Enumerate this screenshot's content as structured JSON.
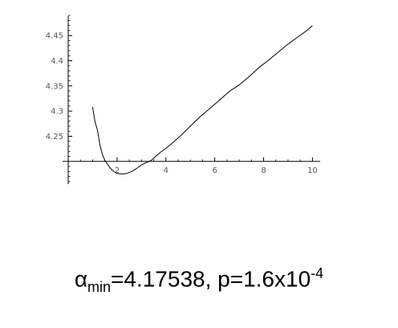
{
  "chart_data": {
    "type": "line",
    "title": "",
    "xlabel": "",
    "ylabel": "",
    "xlim": [
      0,
      10.25
    ],
    "ylim": [
      4.155,
      4.495
    ],
    "axis_cross": {
      "x": 0,
      "y": 4.2
    },
    "x_ticks": [
      2,
      4,
      6,
      8,
      10
    ],
    "x_tick_labels": [
      "2",
      "4",
      "6",
      "8",
      "10"
    ],
    "y_ticks": [
      4.25,
      4.3,
      4.35,
      4.4,
      4.45
    ],
    "y_tick_labels": [
      "4.25",
      "4.3",
      "4.35",
      "4.4",
      "4.45"
    ],
    "grid": false,
    "series": [
      {
        "color": "#000000",
        "x": [
          1.0,
          1.1,
          1.2,
          1.3,
          1.4,
          1.5,
          1.6,
          1.7,
          1.8,
          1.9,
          2.0,
          2.2,
          2.4,
          2.6,
          2.8,
          3.0,
          3.2,
          3.4,
          3.6,
          3.8,
          4.0,
          4.3,
          4.6,
          5.0,
          5.4,
          5.8,
          6.2,
          6.6,
          7.0,
          7.4,
          7.8,
          8.2,
          8.6,
          9.0,
          9.4,
          9.8,
          10.0
        ],
        "y": [
          4.308,
          4.278,
          4.262,
          4.232,
          4.214,
          4.202,
          4.195,
          4.188,
          4.183,
          4.179,
          4.176,
          4.175,
          4.176,
          4.18,
          4.186,
          4.193,
          4.198,
          4.202,
          4.211,
          4.219,
          4.226,
          4.238,
          4.251,
          4.27,
          4.289,
          4.305,
          4.322,
          4.339,
          4.352,
          4.368,
          4.386,
          4.401,
          4.417,
          4.433,
          4.447,
          4.461,
          4.47
        ]
      }
    ]
  },
  "caption": {
    "alpha_symbol": "α",
    "alpha_subscript": "min",
    "text_middle": "=4.17538, p=1.6x10",
    "exponent": "-4"
  }
}
